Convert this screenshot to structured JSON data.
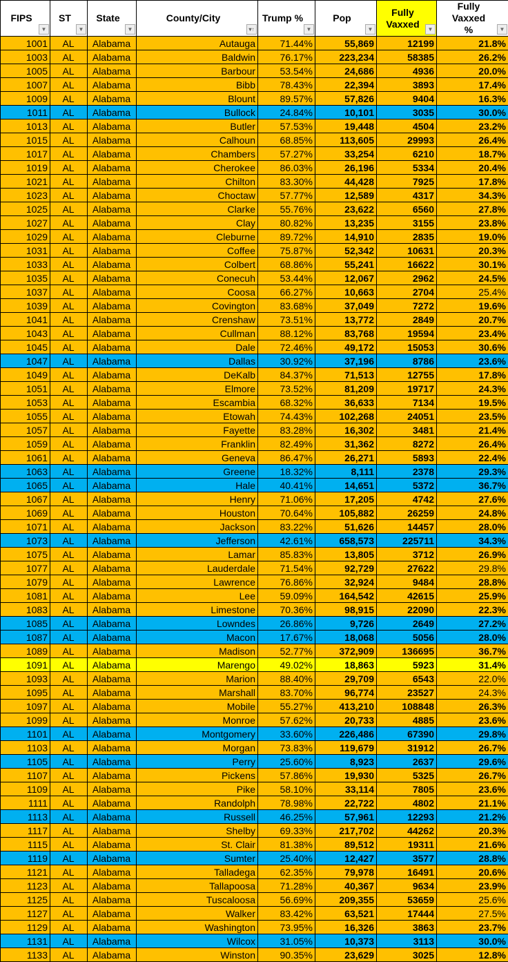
{
  "colors": {
    "red_county": "#FFC000",
    "blue_county": "#00B0F0",
    "highlight": "#FFFF00"
  },
  "headers": [
    {
      "label": "FIPS",
      "filter": "filter-dropdown-icon"
    },
    {
      "label": "ST",
      "filter": "filter-dropdown-icon"
    },
    {
      "label": "State",
      "filter": "filter-dropdown-icon"
    },
    {
      "label": "County/City",
      "filter": "sort-ascending-icon"
    },
    {
      "label": "Trump %",
      "filter": "filter-dropdown-icon"
    },
    {
      "label": "Pop",
      "filter": "filter-dropdown-icon"
    },
    {
      "label": "Fully Vaxxed",
      "filter": "filter-dropdown-icon"
    },
    {
      "label": "Fully Vaxxed %",
      "filter": "filter-dropdown-icon"
    }
  ],
  "rows": [
    {
      "f": "1001",
      "s": "AL",
      "st": "Alabama",
      "c": "Autauga",
      "t": "71.44%",
      "p": "55,869",
      "v": "12199",
      "pc": "21.8%",
      "k": "o"
    },
    {
      "f": "1003",
      "s": "AL",
      "st": "Alabama",
      "c": "Baldwin",
      "t": "76.17%",
      "p": "223,234",
      "v": "58385",
      "pc": "26.2%",
      "k": "o"
    },
    {
      "f": "1005",
      "s": "AL",
      "st": "Alabama",
      "c": "Barbour",
      "t": "53.54%",
      "p": "24,686",
      "v": "4936",
      "pc": "20.0%",
      "k": "o"
    },
    {
      "f": "1007",
      "s": "AL",
      "st": "Alabama",
      "c": "Bibb",
      "t": "78.43%",
      "p": "22,394",
      "v": "3893",
      "pc": "17.4%",
      "k": "o"
    },
    {
      "f": "1009",
      "s": "AL",
      "st": "Alabama",
      "c": "Blount",
      "t": "89.57%",
      "p": "57,826",
      "v": "9404",
      "pc": "16.3%",
      "k": "o"
    },
    {
      "f": "1011",
      "s": "AL",
      "st": "Alabama",
      "c": "Bullock",
      "t": "24.84%",
      "p": "10,101",
      "v": "3035",
      "pc": "30.0%",
      "k": "b"
    },
    {
      "f": "1013",
      "s": "AL",
      "st": "Alabama",
      "c": "Butler",
      "t": "57.53%",
      "p": "19,448",
      "v": "4504",
      "pc": "23.2%",
      "k": "o"
    },
    {
      "f": "1015",
      "s": "AL",
      "st": "Alabama",
      "c": "Calhoun",
      "t": "68.85%",
      "p": "113,605",
      "v": "29993",
      "pc": "26.4%",
      "k": "o"
    },
    {
      "f": "1017",
      "s": "AL",
      "st": "Alabama",
      "c": "Chambers",
      "t": "57.27%",
      "p": "33,254",
      "v": "6210",
      "pc": "18.7%",
      "k": "o"
    },
    {
      "f": "1019",
      "s": "AL",
      "st": "Alabama",
      "c": "Cherokee",
      "t": "86.03%",
      "p": "26,196",
      "v": "5334",
      "pc": "20.4%",
      "k": "o"
    },
    {
      "f": "1021",
      "s": "AL",
      "st": "Alabama",
      "c": "Chilton",
      "t": "83.30%",
      "p": "44,428",
      "v": "7925",
      "pc": "17.8%",
      "k": "o"
    },
    {
      "f": "1023",
      "s": "AL",
      "st": "Alabama",
      "c": "Choctaw",
      "t": "57.77%",
      "p": "12,589",
      "v": "4317",
      "pc": "34.3%",
      "k": "o"
    },
    {
      "f": "1025",
      "s": "AL",
      "st": "Alabama",
      "c": "Clarke",
      "t": "55.76%",
      "p": "23,622",
      "v": "6560",
      "pc": "27.8%",
      "k": "o"
    },
    {
      "f": "1027",
      "s": "AL",
      "st": "Alabama",
      "c": "Clay",
      "t": "80.82%",
      "p": "13,235",
      "v": "3155",
      "pc": "23.8%",
      "k": "o"
    },
    {
      "f": "1029",
      "s": "AL",
      "st": "Alabama",
      "c": "Cleburne",
      "t": "89.72%",
      "p": "14,910",
      "v": "2835",
      "pc": "19.0%",
      "k": "o"
    },
    {
      "f": "1031",
      "s": "AL",
      "st": "Alabama",
      "c": "Coffee",
      "t": "75.87%",
      "p": "52,342",
      "v": "10631",
      "pc": "20.3%",
      "k": "o"
    },
    {
      "f": "1033",
      "s": "AL",
      "st": "Alabama",
      "c": "Colbert",
      "t": "68.86%",
      "p": "55,241",
      "v": "16622",
      "pc": "30.1%",
      "k": "o"
    },
    {
      "f": "1035",
      "s": "AL",
      "st": "Alabama",
      "c": "Conecuh",
      "t": "53.44%",
      "p": "12,067",
      "v": "2962",
      "pc": "24.5%",
      "k": "o"
    },
    {
      "f": "1037",
      "s": "AL",
      "st": "Alabama",
      "c": "Coosa",
      "t": "66.27%",
      "p": "10,663",
      "v": "2704",
      "pc": "25.4%",
      "k": "o",
      "nb": true
    },
    {
      "f": "1039",
      "s": "AL",
      "st": "Alabama",
      "c": "Covington",
      "t": "83.68%",
      "p": "37,049",
      "v": "7272",
      "pc": "19.6%",
      "k": "o"
    },
    {
      "f": "1041",
      "s": "AL",
      "st": "Alabama",
      "c": "Crenshaw",
      "t": "73.51%",
      "p": "13,772",
      "v": "2849",
      "pc": "20.7%",
      "k": "o"
    },
    {
      "f": "1043",
      "s": "AL",
      "st": "Alabama",
      "c": "Cullman",
      "t": "88.12%",
      "p": "83,768",
      "v": "19594",
      "pc": "23.4%",
      "k": "o"
    },
    {
      "f": "1045",
      "s": "AL",
      "st": "Alabama",
      "c": "Dale",
      "t": "72.46%",
      "p": "49,172",
      "v": "15053",
      "pc": "30.6%",
      "k": "o"
    },
    {
      "f": "1047",
      "s": "AL",
      "st": "Alabama",
      "c": "Dallas",
      "t": "30.92%",
      "p": "37,196",
      "v": "8786",
      "pc": "23.6%",
      "k": "b"
    },
    {
      "f": "1049",
      "s": "AL",
      "st": "Alabama",
      "c": "DeKalb",
      "t": "84.37%",
      "p": "71,513",
      "v": "12755",
      "pc": "17.8%",
      "k": "o"
    },
    {
      "f": "1051",
      "s": "AL",
      "st": "Alabama",
      "c": "Elmore",
      "t": "73.52%",
      "p": "81,209",
      "v": "19717",
      "pc": "24.3%",
      "k": "o"
    },
    {
      "f": "1053",
      "s": "AL",
      "st": "Alabama",
      "c": "Escambia",
      "t": "68.32%",
      "p": "36,633",
      "v": "7134",
      "pc": "19.5%",
      "k": "o"
    },
    {
      "f": "1055",
      "s": "AL",
      "st": "Alabama",
      "c": "Etowah",
      "t": "74.43%",
      "p": "102,268",
      "v": "24051",
      "pc": "23.5%",
      "k": "o"
    },
    {
      "f": "1057",
      "s": "AL",
      "st": "Alabama",
      "c": "Fayette",
      "t": "83.28%",
      "p": "16,302",
      "v": "3481",
      "pc": "21.4%",
      "k": "o"
    },
    {
      "f": "1059",
      "s": "AL",
      "st": "Alabama",
      "c": "Franklin",
      "t": "82.49%",
      "p": "31,362",
      "v": "8272",
      "pc": "26.4%",
      "k": "o"
    },
    {
      "f": "1061",
      "s": "AL",
      "st": "Alabama",
      "c": "Geneva",
      "t": "86.47%",
      "p": "26,271",
      "v": "5893",
      "pc": "22.4%",
      "k": "o"
    },
    {
      "f": "1063",
      "s": "AL",
      "st": "Alabama",
      "c": "Greene",
      "t": "18.32%",
      "p": "8,111",
      "v": "2378",
      "pc": "29.3%",
      "k": "b"
    },
    {
      "f": "1065",
      "s": "AL",
      "st": "Alabama",
      "c": "Hale",
      "t": "40.41%",
      "p": "14,651",
      "v": "5372",
      "pc": "36.7%",
      "k": "b"
    },
    {
      "f": "1067",
      "s": "AL",
      "st": "Alabama",
      "c": "Henry",
      "t": "71.06%",
      "p": "17,205",
      "v": "4742",
      "pc": "27.6%",
      "k": "o"
    },
    {
      "f": "1069",
      "s": "AL",
      "st": "Alabama",
      "c": "Houston",
      "t": "70.64%",
      "p": "105,882",
      "v": "26259",
      "pc": "24.8%",
      "k": "o"
    },
    {
      "f": "1071",
      "s": "AL",
      "st": "Alabama",
      "c": "Jackson",
      "t": "83.22%",
      "p": "51,626",
      "v": "14457",
      "pc": "28.0%",
      "k": "o"
    },
    {
      "f": "1073",
      "s": "AL",
      "st": "Alabama",
      "c": "Jefferson",
      "t": "42.61%",
      "p": "658,573",
      "v": "225711",
      "pc": "34.3%",
      "k": "b"
    },
    {
      "f": "1075",
      "s": "AL",
      "st": "Alabama",
      "c": "Lamar",
      "t": "85.83%",
      "p": "13,805",
      "v": "3712",
      "pc": "26.9%",
      "k": "o"
    },
    {
      "f": "1077",
      "s": "AL",
      "st": "Alabama",
      "c": "Lauderdale",
      "t": "71.54%",
      "p": "92,729",
      "v": "27622",
      "pc": "29.8%",
      "k": "o",
      "nb": true
    },
    {
      "f": "1079",
      "s": "AL",
      "st": "Alabama",
      "c": "Lawrence",
      "t": "76.86%",
      "p": "32,924",
      "v": "9484",
      "pc": "28.8%",
      "k": "o"
    },
    {
      "f": "1081",
      "s": "AL",
      "st": "Alabama",
      "c": "Lee",
      "t": "59.09%",
      "p": "164,542",
      "v": "42615",
      "pc": "25.9%",
      "k": "o"
    },
    {
      "f": "1083",
      "s": "AL",
      "st": "Alabama",
      "c": "Limestone",
      "t": "70.36%",
      "p": "98,915",
      "v": "22090",
      "pc": "22.3%",
      "k": "o"
    },
    {
      "f": "1085",
      "s": "AL",
      "st": "Alabama",
      "c": "Lowndes",
      "t": "26.86%",
      "p": "9,726",
      "v": "2649",
      "pc": "27.2%",
      "k": "b"
    },
    {
      "f": "1087",
      "s": "AL",
      "st": "Alabama",
      "c": "Macon",
      "t": "17.67%",
      "p": "18,068",
      "v": "5056",
      "pc": "28.0%",
      "k": "b"
    },
    {
      "f": "1089",
      "s": "AL",
      "st": "Alabama",
      "c": "Madison",
      "t": "52.77%",
      "p": "372,909",
      "v": "136695",
      "pc": "36.7%",
      "k": "o"
    },
    {
      "f": "1091",
      "s": "AL",
      "st": "Alabama",
      "c": "Marengo",
      "t": "49.02%",
      "p": "18,863",
      "v": "5923",
      "pc": "31.4%",
      "k": "y"
    },
    {
      "f": "1093",
      "s": "AL",
      "st": "Alabama",
      "c": "Marion",
      "t": "88.40%",
      "p": "29,709",
      "v": "6543",
      "pc": "22.0%",
      "k": "o",
      "nb": true
    },
    {
      "f": "1095",
      "s": "AL",
      "st": "Alabama",
      "c": "Marshall",
      "t": "83.70%",
      "p": "96,774",
      "v": "23527",
      "pc": "24.3%",
      "k": "o",
      "nb": true
    },
    {
      "f": "1097",
      "s": "AL",
      "st": "Alabama",
      "c": "Mobile",
      "t": "55.27%",
      "p": "413,210",
      "v": "108848",
      "pc": "26.3%",
      "k": "o"
    },
    {
      "f": "1099",
      "s": "AL",
      "st": "Alabama",
      "c": "Monroe",
      "t": "57.62%",
      "p": "20,733",
      "v": "4885",
      "pc": "23.6%",
      "k": "o"
    },
    {
      "f": "1101",
      "s": "AL",
      "st": "Alabama",
      "c": "Montgomery",
      "t": "33.60%",
      "p": "226,486",
      "v": "67390",
      "pc": "29.8%",
      "k": "b"
    },
    {
      "f": "1103",
      "s": "AL",
      "st": "Alabama",
      "c": "Morgan",
      "t": "73.83%",
      "p": "119,679",
      "v": "31912",
      "pc": "26.7%",
      "k": "o"
    },
    {
      "f": "1105",
      "s": "AL",
      "st": "Alabama",
      "c": "Perry",
      "t": "25.60%",
      "p": "8,923",
      "v": "2637",
      "pc": "29.6%",
      "k": "b"
    },
    {
      "f": "1107",
      "s": "AL",
      "st": "Alabama",
      "c": "Pickens",
      "t": "57.86%",
      "p": "19,930",
      "v": "5325",
      "pc": "26.7%",
      "k": "o"
    },
    {
      "f": "1109",
      "s": "AL",
      "st": "Alabama",
      "c": "Pike",
      "t": "58.10%",
      "p": "33,114",
      "v": "7805",
      "pc": "23.6%",
      "k": "o"
    },
    {
      "f": "1111",
      "s": "AL",
      "st": "Alabama",
      "c": "Randolph",
      "t": "78.98%",
      "p": "22,722",
      "v": "4802",
      "pc": "21.1%",
      "k": "o"
    },
    {
      "f": "1113",
      "s": "AL",
      "st": "Alabama",
      "c": "Russell",
      "t": "46.25%",
      "p": "57,961",
      "v": "12293",
      "pc": "21.2%",
      "k": "b"
    },
    {
      "f": "1117",
      "s": "AL",
      "st": "Alabama",
      "c": "Shelby",
      "t": "69.33%",
      "p": "217,702",
      "v": "44262",
      "pc": "20.3%",
      "k": "o"
    },
    {
      "f": "1115",
      "s": "AL",
      "st": "Alabama",
      "c": "St. Clair",
      "t": "81.38%",
      "p": "89,512",
      "v": "19311",
      "pc": "21.6%",
      "k": "o"
    },
    {
      "f": "1119",
      "s": "AL",
      "st": "Alabama",
      "c": "Sumter",
      "t": "25.40%",
      "p": "12,427",
      "v": "3577",
      "pc": "28.8%",
      "k": "b"
    },
    {
      "f": "1121",
      "s": "AL",
      "st": "Alabama",
      "c": "Talladega",
      "t": "62.35%",
      "p": "79,978",
      "v": "16491",
      "pc": "20.6%",
      "k": "o"
    },
    {
      "f": "1123",
      "s": "AL",
      "st": "Alabama",
      "c": "Tallapoosa",
      "t": "71.28%",
      "p": "40,367",
      "v": "9634",
      "pc": "23.9%",
      "k": "o"
    },
    {
      "f": "1125",
      "s": "AL",
      "st": "Alabama",
      "c": "Tuscaloosa",
      "t": "56.69%",
      "p": "209,355",
      "v": "53659",
      "pc": "25.6%",
      "k": "o",
      "nb": true
    },
    {
      "f": "1127",
      "s": "AL",
      "st": "Alabama",
      "c": "Walker",
      "t": "83.42%",
      "p": "63,521",
      "v": "17444",
      "pc": "27.5%",
      "k": "o",
      "nb": true
    },
    {
      "f": "1129",
      "s": "AL",
      "st": "Alabama",
      "c": "Washington",
      "t": "73.95%",
      "p": "16,326",
      "v": "3863",
      "pc": "23.7%",
      "k": "o"
    },
    {
      "f": "1131",
      "s": "AL",
      "st": "Alabama",
      "c": "Wilcox",
      "t": "31.05%",
      "p": "10,373",
      "v": "3113",
      "pc": "30.0%",
      "k": "b"
    },
    {
      "f": "1133",
      "s": "AL",
      "st": "Alabama",
      "c": "Winston",
      "t": "90.35%",
      "p": "23,629",
      "v": "3025",
      "pc": "12.8%",
      "k": "o"
    }
  ]
}
